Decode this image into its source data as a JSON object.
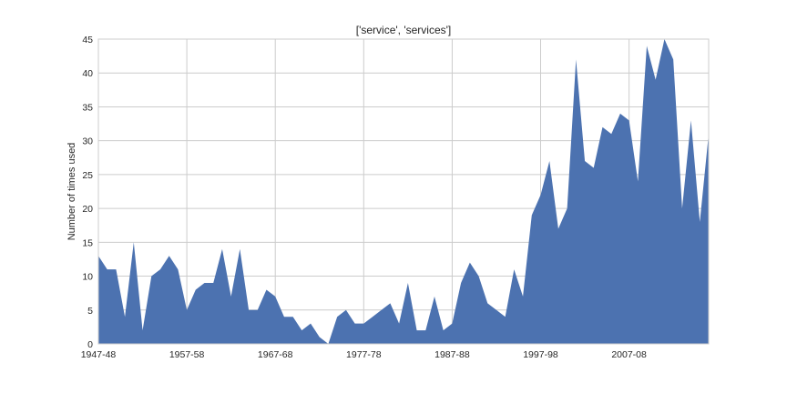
{
  "chart_data": {
    "type": "area",
    "title": "['service', 'services']",
    "xlabel": "",
    "ylabel": "Number of times used",
    "ylim": [
      0,
      45
    ],
    "yticks": [
      0,
      5,
      10,
      15,
      20,
      25,
      30,
      35,
      40,
      45
    ],
    "xticks": [
      {
        "index": 0,
        "label": "1947-48"
      },
      {
        "index": 10,
        "label": "1957-58"
      },
      {
        "index": 20,
        "label": "1967-68"
      },
      {
        "index": 30,
        "label": "1977-78"
      },
      {
        "index": 40,
        "label": "1987-88"
      },
      {
        "index": 50,
        "label": "1997-98"
      },
      {
        "index": 60,
        "label": "2007-08"
      }
    ],
    "grid": true,
    "color": "#4c72b0",
    "x": [
      "1947-48",
      "1948-49",
      "1949-50",
      "1950-51",
      "1951-52",
      "1952-53",
      "1953-54",
      "1954-55",
      "1955-56",
      "1956-57",
      "1957-58",
      "1958-59",
      "1959-60",
      "1960-61",
      "1961-62",
      "1962-63",
      "1963-64",
      "1964-65",
      "1965-66",
      "1966-67",
      "1967-68",
      "1968-69",
      "1969-70",
      "1970-71",
      "1971-72",
      "1972-73",
      "1973-74",
      "1974-75",
      "1975-76",
      "1976-77",
      "1977-78",
      "1978-79",
      "1979-80",
      "1980-81",
      "1981-82",
      "1982-83",
      "1983-84",
      "1984-85",
      "1985-86",
      "1986-87",
      "1987-88",
      "1988-89",
      "1989-90",
      "1990-91",
      "1991-92",
      "1992-93",
      "1993-94",
      "1994-95",
      "1995-96",
      "1996-97",
      "1997-98",
      "1998-99",
      "1999-00",
      "2000-01",
      "2001-02",
      "2002-03",
      "2003-04",
      "2004-05",
      "2005-06",
      "2006-07",
      "2007-08",
      "2008-09",
      "2009-10",
      "2010-11",
      "2011-12",
      "2012-13",
      "2013-14",
      "2014-15",
      "2015-16",
      "2016-17"
    ],
    "values": [
      13,
      11,
      11,
      4,
      15,
      2,
      10,
      11,
      13,
      11,
      5,
      8,
      9,
      9,
      14,
      7,
      14,
      5,
      5,
      8,
      7,
      4,
      4,
      2,
      3,
      1,
      0,
      4,
      5,
      3,
      3,
      4,
      5,
      6,
      3,
      9,
      2,
      2,
      7,
      2,
      3,
      9,
      12,
      10,
      6,
      5,
      4,
      11,
      7,
      19,
      22,
      27,
      17,
      20,
      42,
      27,
      26,
      32,
      31,
      34,
      33,
      24,
      44,
      39,
      45,
      42,
      20,
      33,
      18,
      31
    ]
  }
}
